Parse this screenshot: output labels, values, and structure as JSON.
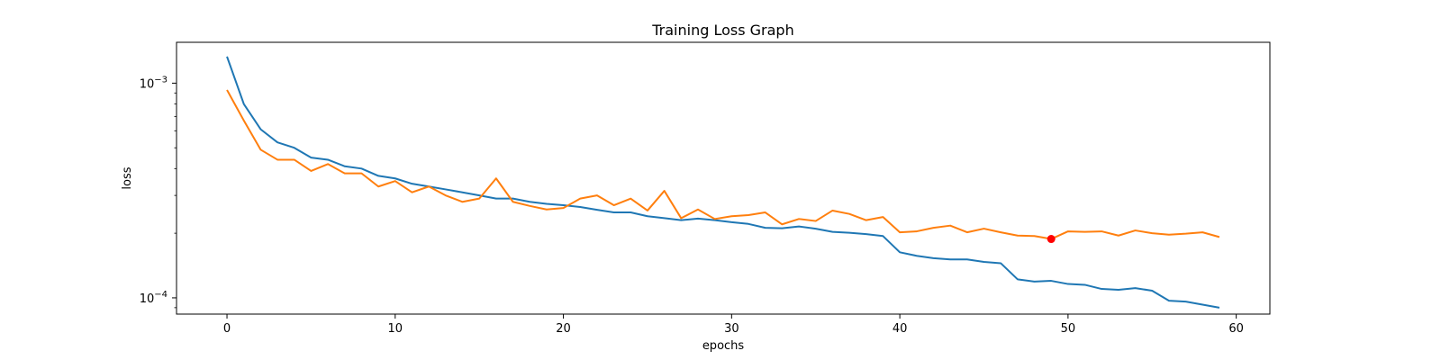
{
  "chart_data": {
    "type": "line",
    "title": "Training Loss Graph",
    "xlabel": "epochs",
    "ylabel": "loss",
    "xlim": [
      -3,
      62
    ],
    "ylim": [
      8.4e-05,
      0.00155
    ],
    "yscale": "log",
    "grid": false,
    "xticks": [
      0,
      10,
      20,
      30,
      40,
      50,
      60
    ],
    "yticks": [
      {
        "value": 0.001,
        "base": "10",
        "exp": "−3"
      },
      {
        "value": 0.0001,
        "base": "10",
        "exp": "−4"
      }
    ],
    "series": [
      {
        "color": "#1f77b4",
        "x": [
          0,
          1,
          2,
          3,
          4,
          5,
          6,
          7,
          8,
          9,
          10,
          11,
          12,
          13,
          14,
          15,
          16,
          17,
          18,
          19,
          20,
          21,
          22,
          23,
          24,
          25,
          26,
          27,
          28,
          29,
          30,
          31,
          32,
          33,
          34,
          35,
          36,
          37,
          38,
          39,
          40,
          41,
          42,
          43,
          44,
          45,
          46,
          47,
          48,
          49,
          50,
          51,
          52,
          53,
          54,
          55,
          56,
          57,
          58,
          59
        ],
        "y": [
          0.00133,
          0.0008,
          0.00061,
          0.00053,
          0.0005,
          0.00045,
          0.00044,
          0.00041,
          0.0004,
          0.00037,
          0.00036,
          0.00034,
          0.00033,
          0.00032,
          0.00031,
          0.0003,
          0.00029,
          0.00029,
          0.00028,
          0.000274,
          0.00027,
          0.000265,
          0.000257,
          0.00025,
          0.00025,
          0.00024,
          0.000235,
          0.00023,
          0.000234,
          0.00023,
          0.000225,
          0.000221,
          0.000212,
          0.000211,
          0.000215,
          0.00021,
          0.000203,
          0.000201,
          0.000198,
          0.000194,
          0.000163,
          0.000157,
          0.000153,
          0.000151,
          0.000151,
          0.000147,
          0.000145,
          0.000122,
          0.000119,
          0.00012,
          0.000116,
          0.000115,
          0.00011,
          0.000109,
          0.000111,
          0.000108,
          9.7e-05,
          9.6e-05,
          9.3e-05,
          9e-05
        ]
      },
      {
        "color": "#ff7f0e",
        "x": [
          0,
          1,
          2,
          3,
          4,
          5,
          6,
          7,
          8,
          9,
          10,
          11,
          12,
          13,
          14,
          15,
          16,
          17,
          18,
          19,
          20,
          21,
          22,
          23,
          24,
          25,
          26,
          27,
          28,
          29,
          30,
          31,
          32,
          33,
          34,
          35,
          36,
          37,
          38,
          39,
          40,
          41,
          42,
          43,
          44,
          45,
          46,
          47,
          48,
          49,
          50,
          51,
          52,
          53,
          54,
          55,
          56,
          57,
          58,
          59
        ],
        "y": [
          0.00093,
          0.00067,
          0.00049,
          0.00044,
          0.00044,
          0.00039,
          0.00042,
          0.00038,
          0.00038,
          0.00033,
          0.00035,
          0.00031,
          0.00033,
          0.0003,
          0.00028,
          0.00029,
          0.00036,
          0.00028,
          0.000268,
          0.000258,
          0.000262,
          0.00029,
          0.0003,
          0.00027,
          0.00029,
          0.000255,
          0.000315,
          0.000235,
          0.000258,
          0.000233,
          0.00024,
          0.000243,
          0.00025,
          0.00022,
          0.000233,
          0.000228,
          0.000255,
          0.000246,
          0.00023,
          0.000238,
          0.000202,
          0.000204,
          0.000212,
          0.000217,
          0.000202,
          0.00021,
          0.000202,
          0.000195,
          0.000194,
          0.000188,
          0.000204,
          0.000203,
          0.000204,
          0.000195,
          0.000206,
          0.0002,
          0.000197,
          0.000199,
          0.000202,
          0.000192
        ]
      }
    ],
    "markers": [
      {
        "x": 49,
        "y": 0.000188,
        "color": "#ff0000"
      }
    ]
  }
}
